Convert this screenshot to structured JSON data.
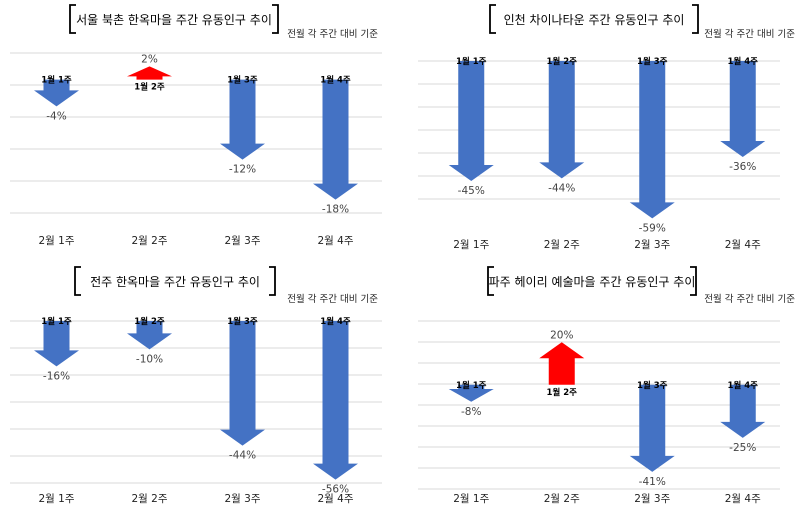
{
  "colors": {
    "down": "#4472c4",
    "up": "#ff0000",
    "grid": "#d9d9d9"
  },
  "chart_data": [
    {
      "type": "bar",
      "title": "서울 북촌 한옥마을 주간 유동인구 추이",
      "note": "전월 각 주간 대비 기준",
      "categories": [
        "2월 1주",
        "2월 2주",
        "2월 3주",
        "2월 4주"
      ],
      "point_labels": [
        "1월 1주",
        "1월 2주",
        "1월 3주",
        "1월 4주"
      ],
      "values": [
        -4,
        2,
        -12,
        -18
      ],
      "value_labels": [
        "-4%",
        "2%",
        "-12%",
        "-18%"
      ],
      "ylim": [
        -20,
        4
      ]
    },
    {
      "type": "bar",
      "title": "인천 차이나타운 주간 유동인구 추이",
      "note": "전월 각 주간 대비 기준",
      "categories": [
        "2월 1주",
        "2월 2주",
        "2월 3주",
        "2월 4주"
      ],
      "point_labels": [
        "1월 1주",
        "1월 2주",
        "1월 3주",
        "1월 4주"
      ],
      "values": [
        -45,
        -44,
        -59,
        -36
      ],
      "value_labels": [
        "-45%",
        "-44%",
        "-59%",
        "-36%"
      ],
      "ylim": [
        -60,
        0
      ]
    },
    {
      "type": "bar",
      "title": "전주 한옥마을 주간 유동인구 추이",
      "note": "전월 각 주간 대비 기준",
      "categories": [
        "2월 1주",
        "2월 2주",
        "2월 3주",
        "2월 4주"
      ],
      "point_labels": [
        "1월 1주",
        "1월 2주",
        "1월 3주",
        "1월 4주"
      ],
      "values": [
        -16,
        -10,
        -44,
        -56
      ],
      "value_labels": [
        "-16%",
        "-10%",
        "-44%",
        "-56%"
      ],
      "ylim": [
        -60,
        0
      ]
    },
    {
      "type": "bar",
      "title": "파주 헤이리 예술마을 주간 유동인구 추이",
      "note": "전월 각 주간 대비 기준",
      "categories": [
        "2월 1주",
        "2월 2주",
        "2월 3주",
        "2월 4주"
      ],
      "point_labels": [
        "1월 1주",
        "1월 2주",
        "1월 3주",
        "1월 4주"
      ],
      "values": [
        -8,
        20,
        -41,
        -25
      ],
      "value_labels": [
        "-8%",
        "20%",
        "-41%",
        "-25%"
      ],
      "ylim": [
        -50,
        30
      ]
    }
  ]
}
